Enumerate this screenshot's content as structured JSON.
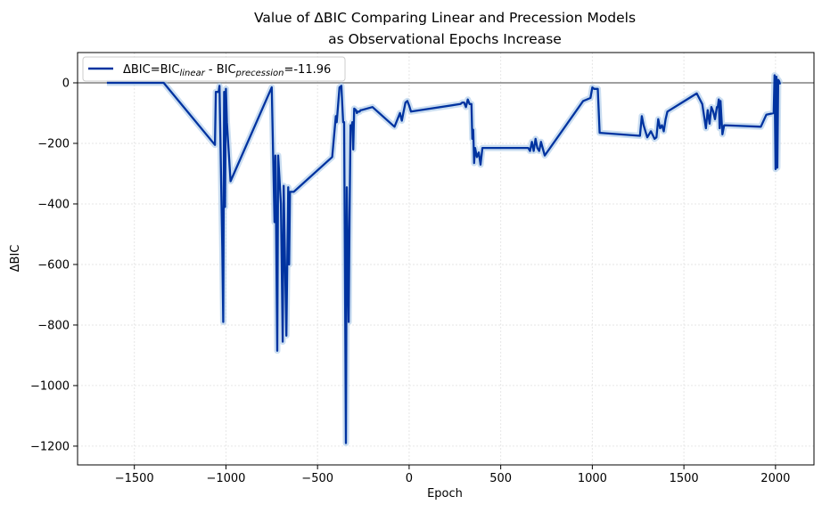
{
  "chart_data": {
    "type": "line",
    "title": "Value of ΔBIC Comparing Linear and Precession Models",
    "subtitle": "as Observational Epochs Increase",
    "xlabel": "Epoch",
    "ylabel": "ΔBIC",
    "xlim": [
      -1810,
      2210
    ],
    "ylim": [
      -1262,
      100
    ],
    "xticks": [
      -1500,
      -1000,
      -500,
      0,
      500,
      1000,
      1500,
      2000
    ],
    "xtick_labels": [
      "−1500",
      "−1000",
      "−500",
      "0",
      "500",
      "1000",
      "1500",
      "2000"
    ],
    "yticks": [
      0,
      -200,
      -400,
      -600,
      -800,
      -1000,
      -1200
    ],
    "ytick_labels": [
      "0",
      "−200",
      "−400",
      "−600",
      "−800",
      "−1000",
      "−1200"
    ],
    "grid": true,
    "hline": 0,
    "legend": {
      "placement": "top-left",
      "prefix": "ΔBIC=BIC",
      "sub1": "linear",
      "mid": " - BIC",
      "sub2": "precession",
      "suffix": "=-11.96"
    },
    "colors": {
      "line": "#0033a0",
      "band": "#a8c8e8",
      "hline": "#808080",
      "grid": "#e6e6e6"
    },
    "series": [
      {
        "x": [
          -1650,
          -1340,
          -1060,
          -1055,
          -1040,
          -1035,
          -1020,
          -1015,
          -1010,
          -1005,
          -1000,
          -995,
          -975,
          -750,
          -735,
          -730,
          -720,
          -715,
          -700,
          -690,
          -685,
          -670,
          -660,
          -655,
          -650,
          -640,
          -630,
          -420,
          -400,
          -395,
          -380,
          -370,
          -360,
          -355,
          -345,
          -340,
          -330,
          -325,
          -320,
          -315,
          -310,
          -305,
          -300,
          -290,
          -285,
          -280,
          -270,
          -265,
          -260,
          -200,
          -80,
          -60,
          -50,
          -40,
          -30,
          -20,
          -10,
          0,
          10,
          280,
          290,
          300,
          310,
          320,
          330,
          340,
          345,
          350,
          355,
          360,
          370,
          380,
          390,
          400,
          650,
          660,
          670,
          680,
          690,
          700,
          710,
          720,
          740,
          950,
          990,
          1000,
          1010,
          1030,
          1040,
          1260,
          1270,
          1280,
          1300,
          1320,
          1340,
          1350,
          1360,
          1370,
          1380,
          1390,
          1400,
          1410,
          1570,
          1600,
          1620,
          1630,
          1640,
          1650,
          1660,
          1670,
          1680,
          1685,
          1690,
          1695,
          1700,
          1710,
          1720,
          1920,
          1950,
          1990,
          1995,
          2000,
          2005,
          2010,
          2015,
          2020,
          2025
        ],
        "values": [
          0,
          0,
          -205,
          -30,
          -30,
          -10,
          -540,
          -790,
          -30,
          -410,
          -20,
          -130,
          -325,
          -15,
          -460,
          -240,
          -885,
          -240,
          -400,
          -855,
          -340,
          -835,
          -345,
          -600,
          -360,
          -360,
          -360,
          -245,
          -110,
          -130,
          -15,
          -10,
          -130,
          -130,
          -1190,
          -345,
          -790,
          -440,
          -140,
          -150,
          -130,
          -220,
          -85,
          -90,
          -100,
          -95,
          -95,
          -90,
          -90,
          -80,
          -145,
          -115,
          -100,
          -125,
          -95,
          -65,
          -60,
          -75,
          -95,
          -70,
          -65,
          -65,
          -80,
          -55,
          -70,
          -70,
          -185,
          -155,
          -265,
          -215,
          -245,
          -230,
          -270,
          -215,
          -215,
          -225,
          -195,
          -225,
          -185,
          -215,
          -225,
          -195,
          -240,
          -60,
          -50,
          -15,
          -20,
          -20,
          -165,
          -175,
          -110,
          -140,
          -180,
          -160,
          -185,
          -180,
          -120,
          -150,
          -140,
          -160,
          -120,
          -95,
          -35,
          -70,
          -150,
          -90,
          -135,
          -80,
          -95,
          -120,
          -80,
          -80,
          -55,
          -150,
          -60,
          -170,
          -140,
          -145,
          -105,
          -100,
          25,
          -285,
          20,
          -280,
          10,
          5,
          -5
        ]
      }
    ]
  }
}
